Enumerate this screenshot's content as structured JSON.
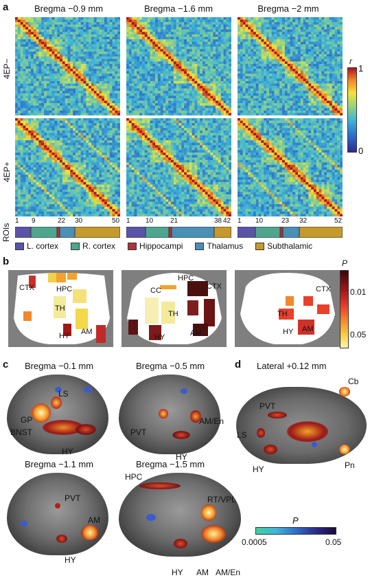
{
  "panel_a": {
    "letter": "a",
    "columns": [
      "Bregma −0.9 mm",
      "Bregma −1.6 mm",
      "Bregma −2 mm"
    ],
    "rows": [
      "4EP−",
      "4EP+"
    ],
    "colorbar": {
      "label": "r",
      "max": "1",
      "min": "0"
    },
    "rois_label": "ROIs",
    "roi_ticks": [
      [
        "1",
        "9",
        "22",
        "30",
        "50"
      ],
      [
        "1",
        "10",
        "21",
        "38",
        "42"
      ],
      [
        "1",
        "10",
        "23",
        "32",
        "52"
      ]
    ],
    "legend": [
      {
        "label": "L. cortex",
        "color": "#5a54a8"
      },
      {
        "label": "R. cortex",
        "color": "#4fa58e"
      },
      {
        "label": "Hippocampi",
        "color": "#b0323a"
      },
      {
        "label": "Thalamus",
        "color": "#4a8fb5"
      },
      {
        "label": "Subthalamic",
        "color": "#c49a2c"
      }
    ]
  },
  "panel_b": {
    "letter": "b",
    "colorbar": {
      "label": "P",
      "top": "0.01",
      "bottom": "0.05"
    },
    "labels_1": [
      "CTX",
      "HPC",
      "TH",
      "AM",
      "HY"
    ],
    "labels_2": [
      "CC",
      "HPC",
      "CTX",
      "TH",
      "HY",
      "AM"
    ],
    "labels_3": [
      "CTX",
      "TH",
      "AM",
      "HY"
    ]
  },
  "panel_c": {
    "letter": "c",
    "titles": [
      "Bregma −0.1 mm",
      "Bregma −0.5 mm",
      "Bregma −1.1 mm",
      "Bregma −1.5 mm"
    ],
    "labels_1": [
      "LS",
      "GP",
      "BNST",
      "HY"
    ],
    "labels_2": [
      "PVT",
      "AM/En",
      "HY"
    ],
    "labels_3": [
      "PVT",
      "AM",
      "HY"
    ],
    "labels_4": [
      "HPC",
      "RT/VPL",
      "HY",
      "AM",
      "AM/En"
    ]
  },
  "panel_d": {
    "letter": "d",
    "title": "Lateral +0.12 mm",
    "labels": [
      "Cb",
      "PVT",
      "LS",
      "HY",
      "Pn"
    ]
  },
  "colorbar_cd": {
    "label": "P",
    "left": "0.0005",
    "right": "0.05"
  }
}
